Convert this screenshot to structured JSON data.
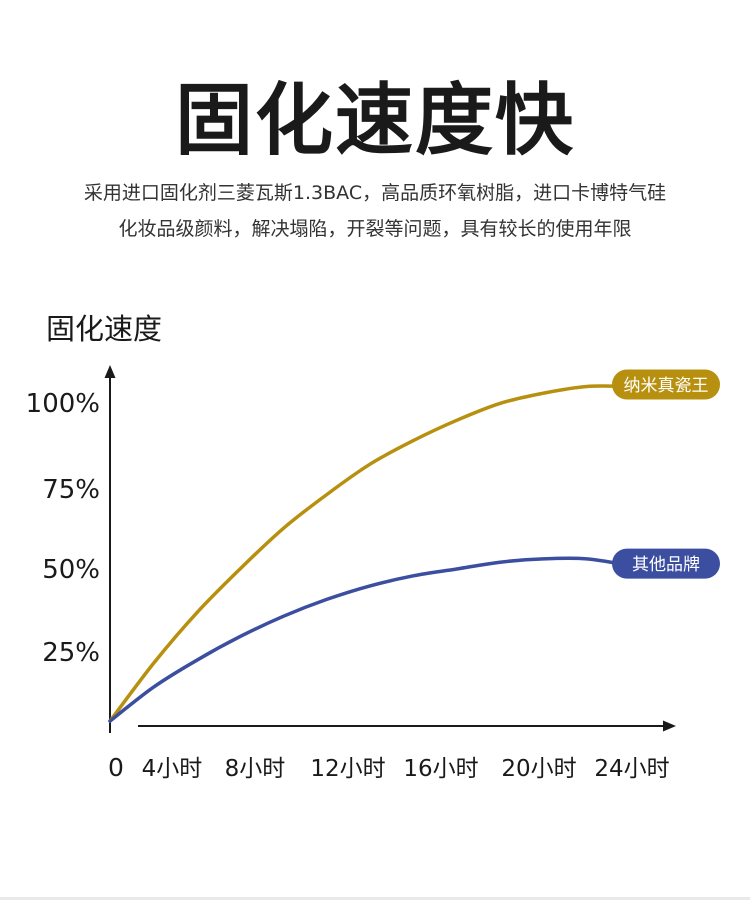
{
  "headline": "固化速度快",
  "description": [
    "采用进口固化剂三菱瓦斯1.3BAC，高品质环氧树脂，进口卡博特气硅",
    "化妆品级颜料，解决塌陷，开裂等问题，具有较长的使用年限"
  ],
  "chart_data": {
    "type": "line",
    "ylabel": "固化速度",
    "xlabel": "",
    "origin_label": "0",
    "categories": [
      "4小时",
      "8小时",
      "12小时",
      "16小时",
      "20小时",
      "24小时"
    ],
    "y_ticks": [
      "25%",
      "50%",
      "75%",
      "100%"
    ],
    "ylim": [
      0,
      100
    ],
    "xlim": [
      0,
      24
    ],
    "grid": false,
    "series": [
      {
        "name": "纳米真瓷王",
        "color": "#b8900f",
        "x": [
          0,
          2,
          4,
          6,
          8,
          10,
          12,
          14,
          16,
          18,
          20,
          22,
          24
        ],
        "y": [
          5,
          22,
          37,
          50,
          62,
          72,
          81,
          88,
          94,
          99,
          102,
          104,
          104
        ]
      },
      {
        "name": "其他品牌",
        "color": "#3b4ea0",
        "x": [
          0,
          2,
          4,
          6,
          8,
          10,
          12,
          14,
          16,
          18,
          20,
          22,
          24
        ],
        "y": [
          5,
          15,
          23,
          30,
          36,
          41,
          45,
          48,
          50,
          52,
          53,
          53,
          51
        ]
      }
    ]
  }
}
